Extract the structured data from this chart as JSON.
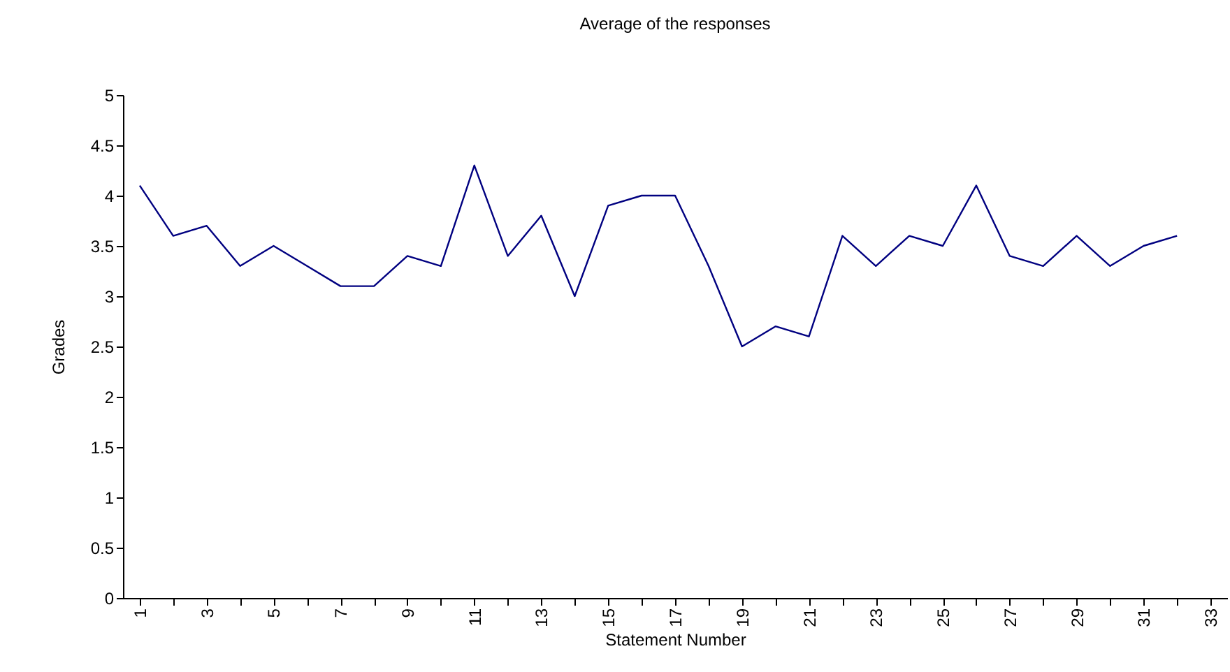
{
  "chart_data": {
    "type": "line",
    "title": "Average of the responses",
    "xlabel": "Statement Number",
    "ylabel": "Grades",
    "categories": [
      "1",
      null,
      "3",
      null,
      "5",
      null,
      "7",
      null,
      "9",
      null,
      "11",
      null,
      "13",
      null,
      "15",
      null,
      "17",
      null,
      "19",
      null,
      "21",
      null,
      "23",
      null,
      "25",
      null,
      "27",
      null,
      "29",
      null,
      "31",
      null,
      "33"
    ],
    "series": [
      {
        "color": "#000080",
        "values": [
          4.1,
          3.6,
          3.7,
          3.3,
          3.5,
          3.3,
          3.1,
          3.1,
          3.4,
          3.3,
          4.3,
          3.4,
          3.8,
          3.0,
          3.9,
          4.0,
          4.0,
          3.3,
          2.5,
          2.7,
          2.6,
          3.6,
          3.3,
          3.6,
          3.5,
          4.1,
          3.4,
          3.3,
          3.6,
          3.3,
          3.5,
          3.6,
          null
        ]
      }
    ],
    "ylim": [
      0,
      5
    ],
    "yticks": [
      0,
      0.5,
      1,
      1.5,
      2,
      2.5,
      3,
      3.5,
      4,
      4.5,
      5
    ],
    "grid": false,
    "legend": false,
    "marker": "none",
    "line_style": "solid"
  }
}
